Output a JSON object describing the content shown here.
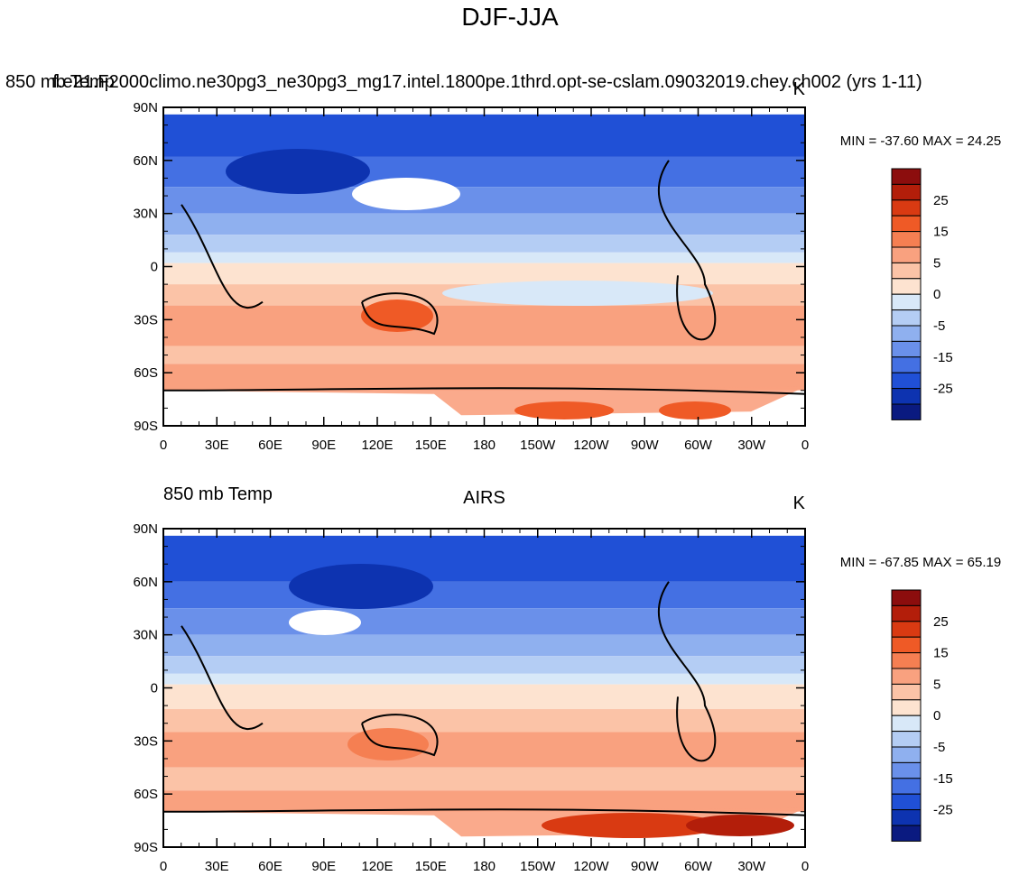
{
  "title": "DJF-JJA",
  "axes": {
    "lat_labels": [
      "90N",
      "60N",
      "30N",
      "0",
      "30S",
      "60S",
      "90S"
    ],
    "lon_labels": [
      "0",
      "30E",
      "60E",
      "90E",
      "120E",
      "150E",
      "180",
      "150W",
      "120W",
      "90W",
      "60W",
      "30W",
      "0"
    ]
  },
  "colorbar": {
    "labels": [
      25,
      15,
      5,
      0,
      -5,
      -15,
      -25
    ],
    "colors": [
      "#8c0d0d",
      "#b31e0a",
      "#d93a12",
      "#ef5a26",
      "#f57f52",
      "#f9a17f",
      "#fbc3a7",
      "#fde3d0",
      "#d8e8f8",
      "#b4cdf4",
      "#8fb0ef",
      "#6a90ea",
      "#4470e3",
      "#2050d6",
      "#0d33b0",
      "#0a1a80"
    ]
  },
  "panels": [
    {
      "left": "850 mb Temp",
      "center": "f.e21.F2000climo.ne30pg3_ne30pg3_mg17.intel.1800pe.1thrd.opt-se-cslam.09032019.chey.ch002 (yrs 1-11)",
      "right": "K",
      "minmax": "MIN = -37.60 MAX =  24.25"
    },
    {
      "left": "850 mb Temp",
      "center": "AIRS",
      "right": "K",
      "minmax": "MIN = -67.85 MAX =  65.19"
    }
  ]
}
